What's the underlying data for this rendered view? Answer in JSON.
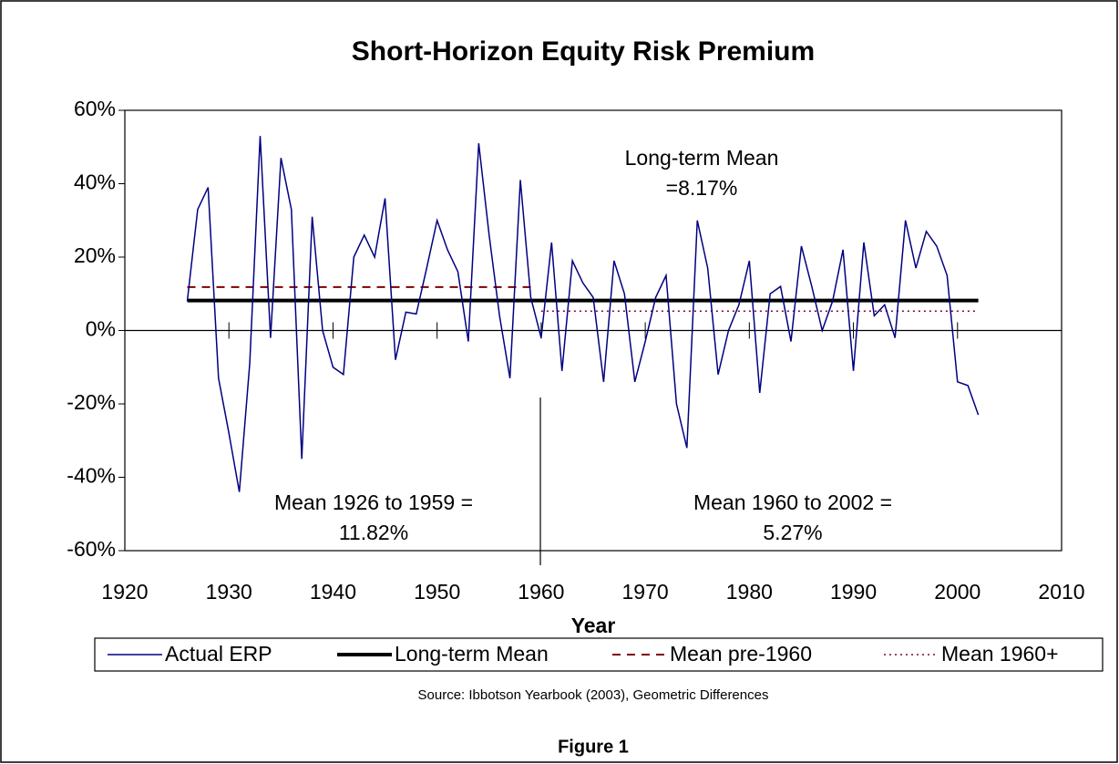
{
  "chart_data": {
    "type": "line",
    "title": "Short-Horizon Equity Risk Premium",
    "x_label": "Year",
    "source": "Source: Ibbotson Yearbook (2003), Geometric Differences",
    "caption": "Figure 1",
    "annotations": [
      {
        "lines": [
          "Long-term Mean",
          "=8.17%"
        ]
      },
      {
        "lines": [
          "Mean 1926 to 1959 =",
          "11.82%"
        ]
      },
      {
        "lines": [
          "Mean 1960 to 2002 =",
          "5.27%"
        ]
      }
    ],
    "xlim": [
      1920,
      2010
    ],
    "xticks": [
      1920,
      1930,
      1940,
      1950,
      1960,
      1970,
      1980,
      1990,
      2000,
      2010
    ],
    "ylim": [
      -60,
      60
    ],
    "yticks": [
      {
        "value": -60,
        "label": "-60%"
      },
      {
        "value": -40,
        "label": "-40%"
      },
      {
        "value": -20,
        "label": "-20%"
      },
      {
        "value": 0,
        "label": "0%"
      },
      {
        "value": 20,
        "label": "20%"
      },
      {
        "value": 40,
        "label": "40%"
      },
      {
        "value": 60,
        "label": "60%"
      }
    ],
    "series": [
      {
        "name": "Actual ERP",
        "color": "#000080",
        "style": "solid",
        "x": [
          1926,
          1927,
          1928,
          1929,
          1930,
          1931,
          1932,
          1933,
          1934,
          1935,
          1936,
          1937,
          1938,
          1939,
          1940,
          1941,
          1942,
          1943,
          1944,
          1945,
          1946,
          1947,
          1948,
          1949,
          1950,
          1951,
          1952,
          1953,
          1954,
          1955,
          1956,
          1957,
          1958,
          1959,
          1960,
          1961,
          1962,
          1963,
          1964,
          1965,
          1966,
          1967,
          1968,
          1969,
          1970,
          1971,
          1972,
          1973,
          1974,
          1975,
          1976,
          1977,
          1978,
          1979,
          1980,
          1981,
          1982,
          1983,
          1984,
          1985,
          1986,
          1987,
          1988,
          1989,
          1990,
          1991,
          1992,
          1993,
          1994,
          1995,
          1996,
          1997,
          1998,
          1999,
          2000,
          2001,
          2002
        ],
        "values": [
          8,
          33,
          39,
          -13,
          -28,
          -44,
          -9,
          53,
          -2,
          47,
          33,
          -35,
          31,
          0,
          -10,
          -12,
          20,
          26,
          20,
          36,
          -8,
          5,
          4.5,
          17,
          30,
          22,
          16,
          -3,
          51,
          26,
          4,
          -13,
          41,
          9,
          -2,
          24,
          -11,
          19,
          13,
          9,
          -14,
          19,
          10,
          -14,
          -3,
          9,
          15,
          -20,
          -32,
          30,
          17,
          -12,
          0,
          7,
          19,
          -17,
          10,
          12,
          -3,
          23,
          12,
          0,
          8,
          22,
          -11,
          24,
          4,
          7,
          -2,
          30,
          17,
          27,
          23,
          15,
          -14,
          -15,
          -23
        ]
      },
      {
        "name": "Long-term Mean",
        "color": "#000000",
        "style": "thick",
        "x": [
          1926,
          2002
        ],
        "values": [
          8.17,
          8.17
        ]
      },
      {
        "name": "Mean pre-1960",
        "color": "#800000",
        "style": "dashed",
        "x": [
          1926,
          1959
        ],
        "values": [
          11.82,
          11.82
        ]
      },
      {
        "name": "Mean 1960+",
        "color": "#800040",
        "style": "dotted",
        "x": [
          1960,
          2002
        ],
        "values": [
          5.27,
          5.27
        ]
      }
    ]
  }
}
